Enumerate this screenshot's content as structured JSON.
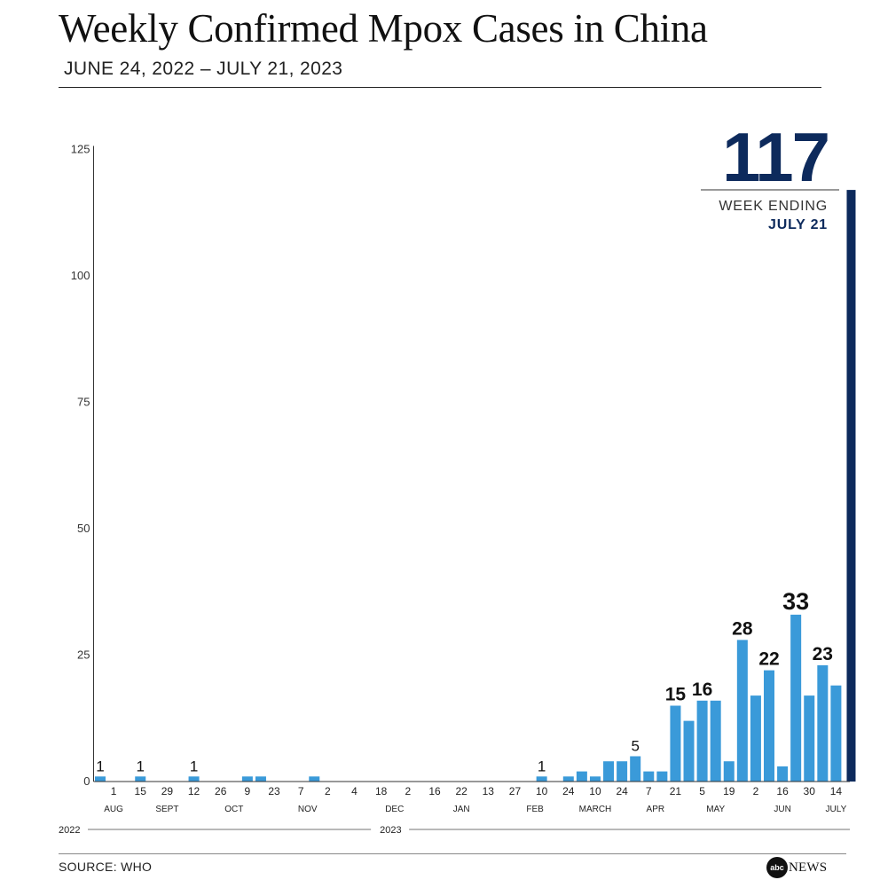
{
  "title": "Weekly Confirmed Mpox Cases in China",
  "subtitle": "JUNE 24, 2022 – JULY 21, 2023",
  "source": "SOURCE: WHO",
  "logo": {
    "disc": "abc",
    "text": "NEWS"
  },
  "colors": {
    "bar": "#3a9ad9",
    "highlight": "#0d2a5c",
    "axis": "#333333",
    "text": "#1a1a1a"
  },
  "chart_data": {
    "type": "bar",
    "title": "Weekly Confirmed Mpox Cases in China",
    "ylim": [
      0,
      125
    ],
    "yticks": [
      0,
      25,
      50,
      75,
      100,
      125
    ],
    "grid": false,
    "values": [
      1,
      0,
      0,
      1,
      0,
      0,
      0,
      1,
      0,
      0,
      0,
      1,
      1,
      0,
      0,
      0,
      1,
      0,
      0,
      0,
      0,
      0,
      0,
      0,
      0,
      0,
      0,
      0,
      0,
      0,
      0,
      0,
      0,
      1,
      0,
      1,
      2,
      1,
      4,
      4,
      5,
      2,
      2,
      15,
      12,
      16,
      16,
      4,
      28,
      17,
      22,
      3,
      33,
      17,
      23,
      19,
      117
    ],
    "value_labels": [
      {
        "index": 0,
        "text": "1"
      },
      {
        "index": 3,
        "text": "1"
      },
      {
        "index": 7,
        "text": "1"
      },
      {
        "index": 33,
        "text": "1"
      },
      {
        "index": 40,
        "text": "5"
      },
      {
        "index": 43,
        "text": "15"
      },
      {
        "index": 45,
        "text": "16"
      },
      {
        "index": 48,
        "text": "28"
      },
      {
        "index": 50,
        "text": "22"
      },
      {
        "index": 52,
        "text": "33"
      },
      {
        "index": 54,
        "text": "23"
      }
    ],
    "day_ticks": [
      {
        "index": 1,
        "text": "1"
      },
      {
        "index": 3,
        "text": "15"
      },
      {
        "index": 5,
        "text": "29"
      },
      {
        "index": 7,
        "text": "12"
      },
      {
        "index": 9,
        "text": "26"
      },
      {
        "index": 11,
        "text": "9"
      },
      {
        "index": 13,
        "text": "23"
      },
      {
        "index": 15,
        "text": "7"
      },
      {
        "index": 17,
        "text": "2"
      },
      {
        "index": 19,
        "text": "4"
      },
      {
        "index": 21,
        "text": "18"
      },
      {
        "index": 23,
        "text": "2"
      },
      {
        "index": 25,
        "text": "16"
      },
      {
        "index": 27,
        "text": "22"
      },
      {
        "index": 29,
        "text": "13"
      },
      {
        "index": 31,
        "text": "27"
      },
      {
        "index": 33,
        "text": "10"
      },
      {
        "index": 35,
        "text": "24"
      },
      {
        "index": 37,
        "text": "10"
      },
      {
        "index": 39,
        "text": "24"
      },
      {
        "index": 41,
        "text": "7"
      },
      {
        "index": 43,
        "text": "21"
      },
      {
        "index": 45,
        "text": "5"
      },
      {
        "index": 47,
        "text": "19"
      },
      {
        "index": 49,
        "text": "2"
      },
      {
        "index": 51,
        "text": "16"
      },
      {
        "index": 53,
        "text": "30"
      },
      {
        "index": 55,
        "text": "14"
      }
    ],
    "months": [
      {
        "index": 1,
        "text": "AUG"
      },
      {
        "index": 5,
        "text": "SEPT"
      },
      {
        "index": 10,
        "text": "OCT"
      },
      {
        "index": 15.5,
        "text": "NOV"
      },
      {
        "index": 22,
        "text": "DEC"
      },
      {
        "index": 27,
        "text": "JAN"
      },
      {
        "index": 32.5,
        "text": "FEB"
      },
      {
        "index": 37,
        "text": "MARCH"
      },
      {
        "index": 41.5,
        "text": "APR"
      },
      {
        "index": 46,
        "text": "MAY"
      },
      {
        "index": 51,
        "text": "JUN"
      },
      {
        "index": 55,
        "text": "JULY"
      }
    ],
    "years": [
      {
        "start_index": -0.5,
        "end_index": 20.5,
        "text": "2022"
      },
      {
        "start_index": 20.5,
        "end_index": 56.5,
        "text": "2023"
      }
    ],
    "callout": {
      "index": 56,
      "value": "117",
      "label": "WEEK ENDING",
      "date": "JULY 21"
    }
  }
}
